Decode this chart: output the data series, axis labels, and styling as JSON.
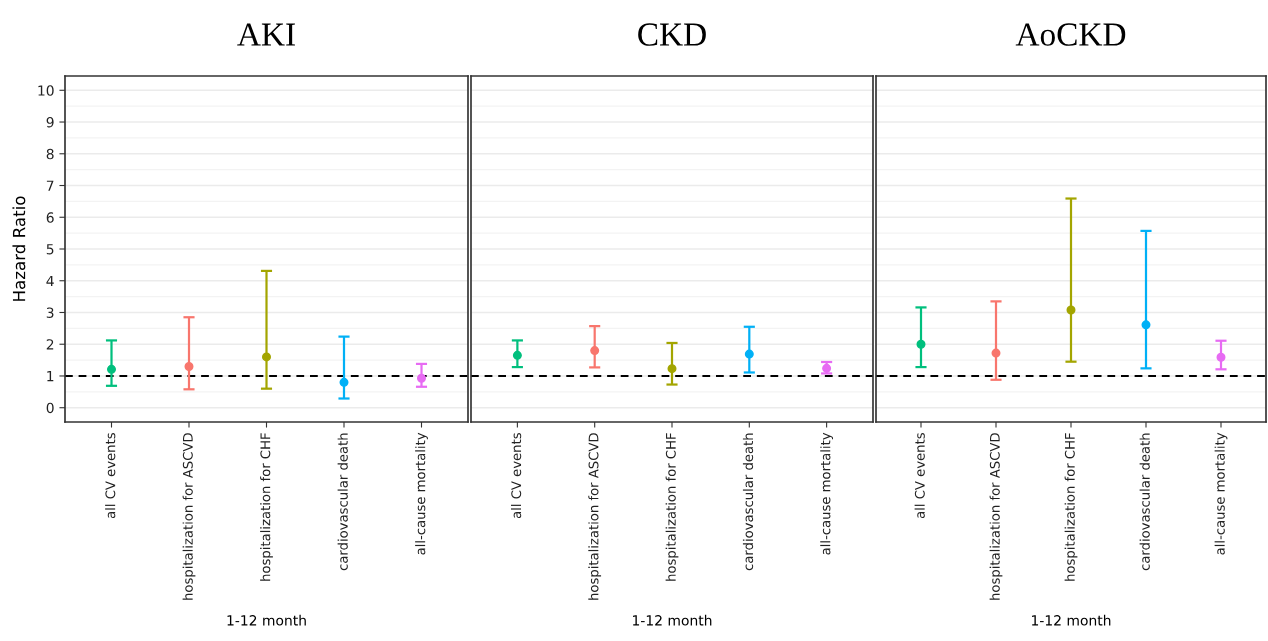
{
  "chart_data": [
    {
      "type": "scatter",
      "title": "AKI",
      "xlabel": "1-12 month",
      "ylabel": "Hazard Ratio",
      "categories": [
        "all CV events",
        "hospitalization for ASCVD",
        "hospitalization for CHF",
        "cardiovascular death",
        "all-cause mortality"
      ],
      "values": [
        1.21,
        1.3,
        1.6,
        0.8,
        0.93
      ],
      "errors": [
        [
          0.69,
          2.12
        ],
        [
          0.58,
          2.85
        ],
        [
          0.6,
          4.31
        ],
        [
          0.29,
          2.24
        ],
        [
          0.66,
          1.38
        ]
      ],
      "colors": [
        "#00bf7d",
        "#f8766d",
        "#a3a500",
        "#00b0f6",
        "#e76bf3"
      ],
      "ylim": [
        -0.45,
        10.45
      ],
      "yticks": [
        0,
        1,
        2,
        3,
        4,
        5,
        6,
        7,
        8,
        9,
        10
      ],
      "grid": "y",
      "marker": "circle",
      "ref_lines": [
        {
          "axis": "y",
          "value": 1,
          "color": "#000000",
          "line_style": "dashed"
        }
      ]
    },
    {
      "type": "scatter",
      "title": "CKD",
      "xlabel": "1-12 month",
      "categories": [
        "all CV events",
        "hospitalization for ASCVD",
        "hospitalization for CHF",
        "cardiovascular death",
        "all-cause mortality"
      ],
      "values": [
        1.65,
        1.8,
        1.23,
        1.69,
        1.24
      ],
      "errors": [
        [
          1.28,
          2.12
        ],
        [
          1.27,
          2.57
        ],
        [
          0.73,
          2.04
        ],
        [
          1.11,
          2.55
        ],
        [
          1.08,
          1.44
        ]
      ],
      "colors": [
        "#00bf7d",
        "#f8766d",
        "#a3a500",
        "#00b0f6",
        "#e76bf3"
      ],
      "ylim": [
        -0.45,
        10.45
      ],
      "yticks": [
        0,
        1,
        2,
        3,
        4,
        5,
        6,
        7,
        8,
        9,
        10
      ],
      "grid": "y",
      "marker": "circle",
      "tick_labels": "x",
      "ref_lines": [
        {
          "axis": "y",
          "value": 1,
          "color": "#000000",
          "line_style": "dashed"
        }
      ]
    },
    {
      "type": "scatter",
      "title": "AoCKD",
      "xlabel": "1-12 month",
      "categories": [
        "all CV events",
        "hospitalization for ASCVD",
        "hospitalization for CHF",
        "cardiovascular death",
        "all-cause mortality"
      ],
      "values": [
        2.0,
        1.72,
        3.08,
        2.61,
        1.59
      ],
      "errors": [
        [
          1.28,
          3.16
        ],
        [
          0.88,
          3.35
        ],
        [
          1.45,
          6.59
        ],
        [
          1.24,
          5.57
        ],
        [
          1.21,
          2.11
        ]
      ],
      "colors": [
        "#00bf7d",
        "#f8766d",
        "#a3a500",
        "#00b0f6",
        "#e76bf3"
      ],
      "ylim": [
        -0.45,
        10.45
      ],
      "yticks": [
        0,
        1,
        2,
        3,
        4,
        5,
        6,
        7,
        8,
        9,
        10
      ],
      "grid": "y",
      "marker": "circle",
      "tick_labels": "x",
      "ref_lines": [
        {
          "axis": "y",
          "value": 1,
          "color": "#000000",
          "line_style": "dashed"
        }
      ]
    }
  ]
}
